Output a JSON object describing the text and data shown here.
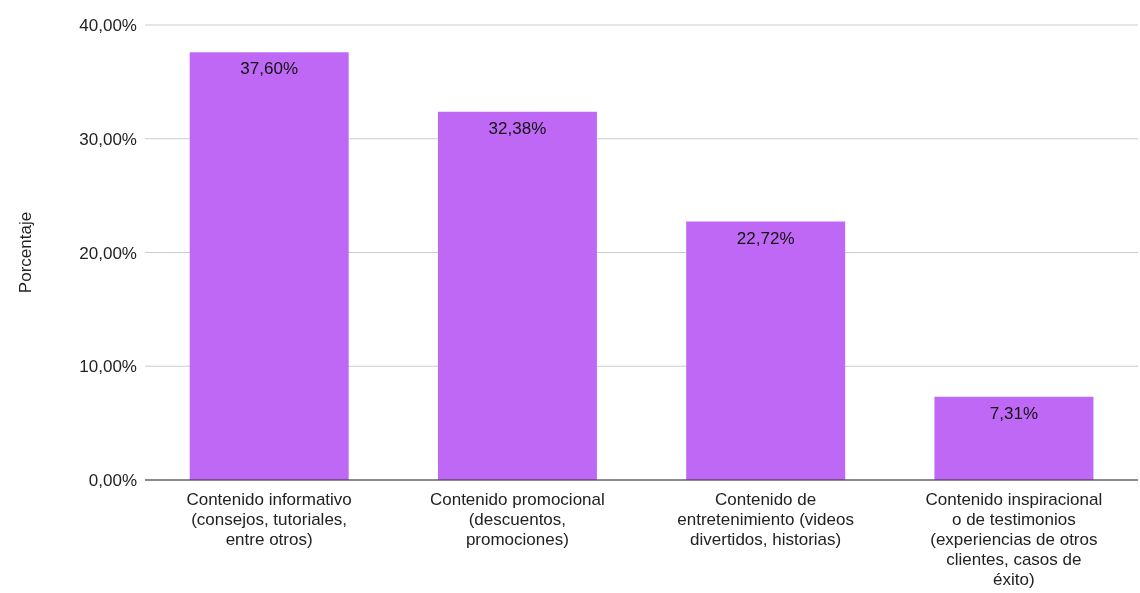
{
  "chart_data": {
    "type": "bar",
    "ylabel": "Porcentaje",
    "categories": [
      "Contenido informativo (consejos, tutoriales, entre otros)",
      "Contenido promocional (descuentos, promociones)",
      "Contenido de entretenimiento (videos divertidos, historias)",
      "Contenido inspiracional o de testimonios (experiencias de otros clientes, casos de éxito)"
    ],
    "values": [
      37.6,
      32.38,
      22.72,
      7.31
    ],
    "value_labels": [
      "37,60%",
      "32,38%",
      "22,72%",
      "7,31%"
    ],
    "color": "#bf68f6",
    "ylim": [
      0,
      40
    ],
    "yticks": [
      {
        "value": 0,
        "label": "0,00%"
      },
      {
        "value": 10,
        "label": "10,00%"
      },
      {
        "value": 20,
        "label": "20,00%"
      },
      {
        "value": 30,
        "label": "30,00%"
      },
      {
        "value": 40,
        "label": "40,00%"
      }
    ],
    "grid": "y",
    "legend": false
  }
}
